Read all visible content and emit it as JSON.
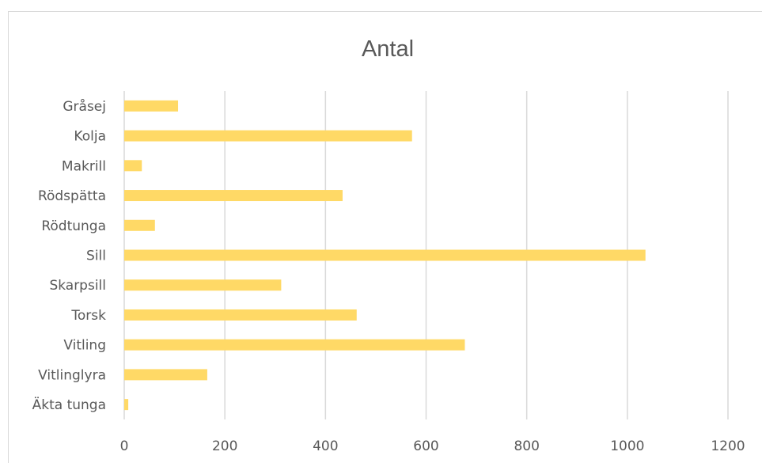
{
  "chart_data": {
    "type": "bar",
    "orientation": "horizontal",
    "title": "Antal",
    "categories": [
      "Gråsej",
      "Kolja",
      "Makrill",
      "Rödspätta",
      "Rödtunga",
      "Sill",
      "Skarpsill",
      "Torsk",
      "Vitling",
      "Vitlinglyra",
      "Äkta tunga"
    ],
    "values": [
      107,
      572,
      35,
      434,
      61,
      1036,
      312,
      462,
      677,
      165,
      8
    ],
    "xlim": [
      0,
      1200
    ],
    "xticks": [
      0,
      200,
      400,
      600,
      800,
      1000,
      1200
    ],
    "xtick_labels": [
      "0",
      "200",
      "400",
      "600",
      "800",
      "1000",
      "1200"
    ],
    "xlabel": "",
    "ylabel": "",
    "grid": "vertical",
    "legend": "none",
    "bar_color": "#ffd966",
    "grid_color": "#d9d9d9"
  }
}
